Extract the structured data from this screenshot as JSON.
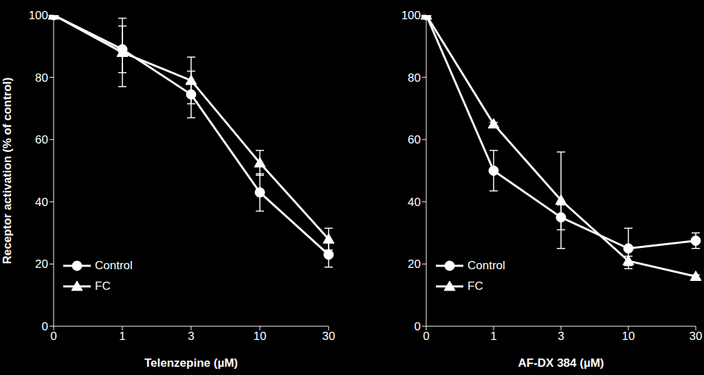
{
  "chart_data": [
    {
      "type": "line",
      "x_label": "Telenzepine (µM)",
      "y_label": "Receptor activation (% of control)",
      "categories": [
        "0",
        "1",
        "3",
        "10",
        "30"
      ],
      "ylim": [
        0,
        100
      ],
      "yticks": [
        0,
        20,
        40,
        60,
        80,
        100
      ],
      "grid": false,
      "legend": "lower left",
      "series": [
        {
          "name": "Control",
          "color": "#ffffff",
          "marker": "circle",
          "values": [
            100,
            89,
            74.5,
            43,
            23
          ],
          "errors": [
            0,
            7.5,
            7.5,
            6,
            4
          ]
        },
        {
          "name": "FC",
          "color": "#ffffff",
          "marker": "triangle",
          "values": [
            100,
            88,
            79,
            52.5,
            28
          ],
          "errors": [
            0,
            11,
            7.5,
            4,
            3.5
          ]
        }
      ]
    },
    {
      "type": "line",
      "x_label": "AF-DX 384 (µM)",
      "categories": [
        "0",
        "1",
        "3",
        "10",
        "30"
      ],
      "ylim": [
        0,
        100
      ],
      "yticks": [
        0,
        20,
        40,
        60,
        80,
        100
      ],
      "grid": false,
      "legend": "lower left",
      "series": [
        {
          "name": "Control",
          "color": "#ffffff",
          "marker": "circle",
          "values": [
            100,
            50,
            35,
            25,
            27.5
          ],
          "errors": [
            0,
            6.5,
            4,
            6.5,
            2.5
          ]
        },
        {
          "name": "FC",
          "color": "#ffffff",
          "marker": "triangle",
          "values": [
            100,
            65,
            40.5,
            21,
            16
          ],
          "errors": [
            0,
            0.5,
            15.5,
            1.5,
            0.5
          ]
        }
      ]
    }
  ]
}
